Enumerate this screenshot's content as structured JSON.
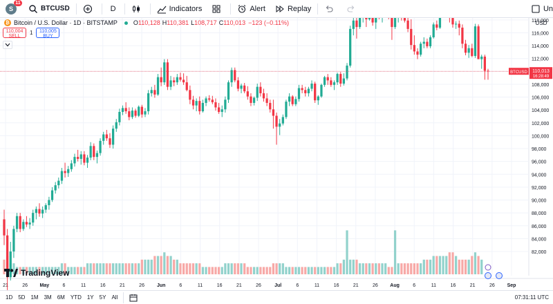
{
  "toolbar": {
    "avatar_letter": "S",
    "notification_count": "11",
    "symbol": "BTCUSD",
    "interval": "D",
    "indicators_label": "Indicators",
    "alert_label": "Alert",
    "replay_label": "Replay",
    "right_cut_label": "Un"
  },
  "legend": {
    "title": "Bitcoin / U.S. Dollar · 1D · BITSTAMP",
    "open_k": "O",
    "open": "110,128",
    "high_k": "H",
    "high": "110,381",
    "low_k": "L",
    "low": "108,717",
    "close_k": "C",
    "close": "110,013",
    "change": "−123 (−0.11%)"
  },
  "trade": {
    "sell_price": "110,004",
    "sell_label": "SELL",
    "spread": "1",
    "buy_price": "110,005",
    "buy_label": "BUY"
  },
  "bottom": {
    "ranges": [
      "1D",
      "5D",
      "1M",
      "3M",
      "6M",
      "YTD",
      "1Y",
      "5Y",
      "All"
    ],
    "clock": "07:31:11 UTC"
  },
  "watermark": "TradingView",
  "colors": {
    "up": "#22ab94",
    "down": "#f23645",
    "up_vol": "#92d2cc",
    "down_vol": "#f7a9a7"
  },
  "chart_data": {
    "type": "candlestick",
    "symbol_label": "BTCUSD",
    "currency": "USD",
    "last_price": "110,013",
    "countdown": "16:28:49",
    "y_ticks": [
      "126,000",
      "124,000",
      "122,000",
      "120,000",
      "118,000",
      "116,000",
      "114,000",
      "112,000",
      "110,000",
      "108,000",
      "106,000",
      "104,000",
      "102,000",
      "100,000",
      "98,000",
      "96,000",
      "94,000",
      "92,000",
      "90,000",
      "88,000",
      "86,000",
      "84,000",
      "82,000"
    ],
    "ylim": [
      80000,
      128000
    ],
    "x_ticks": [
      "21",
      "26",
      "May",
      "6",
      "11",
      "16",
      "21",
      "26",
      "Jun",
      "6",
      "11",
      "16",
      "21",
      "26",
      "Jul",
      "6",
      "11",
      "16",
      "21",
      "26",
      "Aug",
      "6",
      "11",
      "16",
      "21",
      "26",
      "Sep"
    ],
    "grid": true,
    "ohlc": [
      [
        87000,
        88500,
        83000,
        84500
      ],
      [
        84500,
        85500,
        76000,
        78000
      ],
      [
        78000,
        83500,
        77500,
        82000
      ],
      [
        82000,
        86000,
        81000,
        85500
      ],
      [
        85500,
        88000,
        85000,
        87500
      ],
      [
        87500,
        88000,
        85000,
        85500
      ],
      [
        85500,
        87000,
        85200,
        86600
      ],
      [
        86600,
        87500,
        85800,
        86200
      ],
      [
        86200,
        87200,
        85500,
        86500
      ],
      [
        86500,
        88500,
        86000,
        88000
      ],
      [
        88000,
        89000,
        87000,
        88600
      ],
      [
        88600,
        89500,
        87400,
        87900
      ],
      [
        87900,
        89000,
        87200,
        88500
      ],
      [
        88500,
        89500,
        88000,
        89200
      ],
      [
        89200,
        90500,
        88500,
        90000
      ],
      [
        90000,
        92000,
        89700,
        91500
      ],
      [
        91500,
        92800,
        91000,
        92300
      ],
      [
        92300,
        93500,
        91800,
        93000
      ],
      [
        93000,
        95000,
        92500,
        94500
      ],
      [
        94500,
        95800,
        93500,
        94200
      ],
      [
        94200,
        95300,
        93600,
        94800
      ],
      [
        94800,
        96200,
        94400,
        95700
      ],
      [
        95700,
        97200,
        95200,
        96700
      ],
      [
        96700,
        97800,
        96000,
        96400
      ],
      [
        96400,
        97600,
        95500,
        97100
      ],
      [
        97100,
        97600,
        95400,
        95800
      ],
      [
        95800,
        97000,
        95000,
        96600
      ],
      [
        96600,
        99000,
        96200,
        98400
      ],
      [
        98400,
        98800,
        96200,
        96700
      ],
      [
        96700,
        97700,
        95700,
        97300
      ],
      [
        97300,
        99600,
        96900,
        99200
      ],
      [
        99200,
        100600,
        98600,
        100200
      ],
      [
        100200,
        100900,
        99200,
        99600
      ],
      [
        99600,
        100400,
        98100,
        98600
      ],
      [
        98600,
        101600,
        98000,
        101100
      ],
      [
        101100,
        102600,
        100600,
        102100
      ],
      [
        102100,
        104200,
        101600,
        103700
      ],
      [
        103700,
        104700,
        103200,
        104300
      ],
      [
        104300,
        105200,
        103400,
        103800
      ],
      [
        103800,
        104400,
        102400,
        102900
      ],
      [
        102900,
        104400,
        102600,
        103900
      ],
      [
        103900,
        104200,
        102800,
        103100
      ],
      [
        103100,
        104700,
        102900,
        104500
      ],
      [
        104500,
        104800,
        102800,
        103300
      ],
      [
        103300,
        104300,
        102900,
        103800
      ],
      [
        103800,
        107100,
        103300,
        106600
      ],
      [
        106600,
        107600,
        106100,
        107100
      ],
      [
        107100,
        107900,
        105900,
        106400
      ],
      [
        106400,
        109600,
        106200,
        109100
      ],
      [
        109100,
        110600,
        107700,
        108300
      ],
      [
        108300,
        111900,
        107900,
        111400
      ],
      [
        111400,
        111900,
        107100,
        107600
      ],
      [
        107600,
        109300,
        107100,
        108600
      ],
      [
        108600,
        109100,
        107700,
        108300
      ],
      [
        108300,
        109600,
        107900,
        109100
      ],
      [
        109100,
        109800,
        108400,
        108700
      ],
      [
        108700,
        109700,
        107900,
        108300
      ],
      [
        108300,
        109300,
        106900,
        107100
      ],
      [
        107100,
        107800,
        104900,
        105600
      ],
      [
        105600,
        106200,
        104100,
        104700
      ],
      [
        104700,
        105800,
        103800,
        105400
      ],
      [
        105400,
        106100,
        103300,
        103800
      ],
      [
        103800,
        105600,
        103600,
        105100
      ],
      [
        105100,
        106100,
        104600,
        105800
      ],
      [
        105800,
        106300,
        105300,
        105600
      ],
      [
        105600,
        106200,
        104900,
        105200
      ],
      [
        105200,
        105800,
        103900,
        104400
      ],
      [
        104400,
        105100,
        103400,
        103700
      ],
      [
        103700,
        104700,
        102900,
        104100
      ],
      [
        104100,
        106100,
        103600,
        105600
      ],
      [
        105600,
        108600,
        105100,
        108300
      ],
      [
        108300,
        110600,
        107600,
        110200
      ],
      [
        110200,
        110600,
        108300,
        108600
      ],
      [
        108600,
        109100,
        106900,
        107300
      ],
      [
        107300,
        108100,
        106600,
        107800
      ],
      [
        107800,
        108200,
        106600,
        106900
      ],
      [
        106900,
        107700,
        105600,
        106100
      ],
      [
        106100,
        106600,
        104600,
        105100
      ],
      [
        105100,
        106100,
        104700,
        105900
      ],
      [
        105900,
        108100,
        105400,
        107600
      ],
      [
        107600,
        108300,
        106100,
        106600
      ],
      [
        106600,
        107300,
        105300,
        105800
      ],
      [
        105800,
        106600,
        104600,
        105100
      ],
      [
        105100,
        105600,
        103600,
        104100
      ],
      [
        104100,
        105600,
        101100,
        103100
      ],
      [
        103100,
        103600,
        98600,
        101400
      ],
      [
        101400,
        102600,
        100100,
        101900
      ],
      [
        101900,
        103300,
        101600,
        102900
      ],
      [
        102900,
        105600,
        102600,
        105300
      ],
      [
        105300,
        106600,
        104600,
        106100
      ],
      [
        106100,
        106300,
        104600,
        104900
      ],
      [
        104900,
        106100,
        104600,
        105700
      ],
      [
        105700,
        107900,
        105300,
        107400
      ],
      [
        107400,
        107900,
        106600,
        107100
      ],
      [
        107100,
        107600,
        106100,
        106600
      ],
      [
        106600,
        107600,
        106100,
        107300
      ],
      [
        107300,
        108600,
        106900,
        108100
      ],
      [
        108100,
        108400,
        105100,
        105500
      ],
      [
        105500,
        106300,
        104800,
        106100
      ],
      [
        106100,
        108100,
        105900,
        107900
      ],
      [
        107900,
        109300,
        107600,
        109100
      ],
      [
        109100,
        109600,
        107900,
        108600
      ],
      [
        108600,
        109100,
        107600,
        107900
      ],
      [
        107900,
        108600,
        107100,
        108300
      ],
      [
        108300,
        109800,
        107900,
        109600
      ],
      [
        109600,
        109900,
        107600,
        108100
      ],
      [
        108100,
        109700,
        107800,
        108900
      ],
      [
        108900,
        111300,
        108600,
        110900
      ],
      [
        110900,
        117100,
        110600,
        116600
      ],
      [
        116600,
        118600,
        115600,
        117900
      ],
      [
        117900,
        119100,
        115100,
        116900
      ],
      [
        116900,
        120100,
        116600,
        119600
      ],
      [
        119600,
        123100,
        117600,
        120100
      ],
      [
        120100,
        121100,
        116900,
        118100
      ],
      [
        118100,
        120600,
        117900,
        120300
      ],
      [
        120300,
        120600,
        117100,
        117600
      ],
      [
        117600,
        119600,
        116600,
        119100
      ],
      [
        119100,
        120100,
        118100,
        118600
      ],
      [
        118600,
        119600,
        117600,
        119100
      ],
      [
        119100,
        120100,
        118600,
        119600
      ],
      [
        119600,
        120100,
        118100,
        118400
      ],
      [
        118400,
        119100,
        114900,
        116900
      ],
      [
        116900,
        118600,
        116600,
        118300
      ],
      [
        118300,
        119600,
        117600,
        119400
      ],
      [
        119400,
        120100,
        117900,
        118300
      ],
      [
        118300,
        119100,
        117600,
        117900
      ],
      [
        117900,
        118600,
        116100,
        116600
      ],
      [
        116600,
        118100,
        113400,
        114100
      ],
      [
        114100,
        115600,
        112600,
        113100
      ],
      [
        113100,
        113600,
        111900,
        112600
      ],
      [
        112600,
        114600,
        112300,
        114300
      ],
      [
        114300,
        115300,
        113600,
        114600
      ],
      [
        114600,
        115100,
        113600,
        113900
      ],
      [
        113900,
        115600,
        113600,
        115300
      ],
      [
        115300,
        117600,
        115100,
        117300
      ],
      [
        117300,
        117900,
        116400,
        116800
      ],
      [
        116800,
        119600,
        116600,
        119300
      ],
      [
        119300,
        121100,
        119100,
        120600
      ],
      [
        120600,
        123600,
        120300,
        123400
      ],
      [
        123400,
        124400,
        117600,
        118300
      ],
      [
        118300,
        118800,
        116800,
        117300
      ],
      [
        117300,
        117800,
        116600,
        117400
      ],
      [
        117400,
        117900,
        115600,
        116800
      ],
      [
        116800,
        117300,
        113600,
        114300
      ],
      [
        114300,
        114900,
        112500,
        112900
      ],
      [
        112900,
        114100,
        112100,
        113600
      ],
      [
        113600,
        114300,
        112200,
        112400
      ],
      [
        112400,
        117400,
        112100,
        117000
      ],
      [
        117000,
        117300,
        111900,
        111900
      ],
      [
        111900,
        112600,
        110400,
        112300
      ],
      [
        112300,
        112600,
        108700,
        110100
      ],
      [
        110100,
        110400,
        108700,
        110013
      ]
    ],
    "volume": [
      4,
      5,
      3,
      3,
      2,
      2,
      2,
      2,
      2,
      2,
      2,
      2,
      2,
      2,
      2,
      2,
      2,
      2,
      3,
      3,
      2,
      2,
      2,
      2,
      2,
      2,
      3,
      3,
      3,
      3,
      3,
      3,
      3,
      3,
      3,
      3,
      3,
      3,
      3,
      3,
      3,
      3,
      3,
      4,
      4,
      4,
      4,
      5,
      5,
      5,
      6,
      5,
      5,
      4,
      4,
      3,
      3,
      3,
      3,
      3,
      3,
      3,
      2,
      2,
      2,
      2,
      2,
      2,
      2,
      3,
      3,
      3,
      3,
      3,
      3,
      3,
      2,
      2,
      2,
      2,
      2,
      2,
      2,
      2,
      3,
      3,
      3,
      3,
      2,
      2,
      2,
      2,
      2,
      2,
      2,
      2,
      2,
      2,
      2,
      2,
      2,
      2,
      2,
      2,
      3,
      3,
      4,
      12,
      4,
      4,
      4,
      3,
      3,
      3,
      3,
      3,
      3,
      3,
      3,
      3,
      2,
      2,
      12,
      3,
      3,
      3,
      3,
      3,
      3,
      3,
      3,
      4,
      4,
      4,
      5,
      5,
      5,
      5,
      5,
      6,
      6,
      5,
      4,
      4,
      4,
      4,
      5,
      6,
      5,
      4
    ]
  }
}
